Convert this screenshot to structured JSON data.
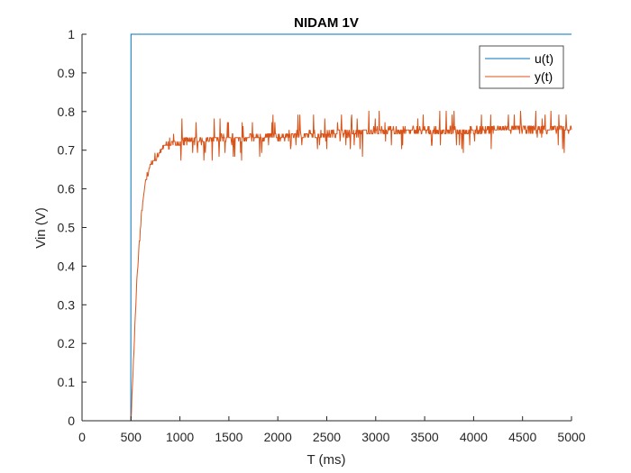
{
  "chart_data": {
    "type": "line",
    "title": "NIDAM 1V",
    "xlabel": "T (ms)",
    "ylabel": "Vin (V)",
    "xlim": [
      0,
      5000
    ],
    "ylim": [
      0,
      1
    ],
    "x_ticks": [
      "0",
      "500",
      "1000",
      "1500",
      "2000",
      "2500",
      "3000",
      "3500",
      "4000",
      "4500",
      "5000"
    ],
    "y_ticks": [
      "0",
      "0.1",
      "0.2",
      "0.3",
      "0.4",
      "0.5",
      "0.6",
      "0.7",
      "0.8",
      "0.9",
      "1"
    ],
    "grid": false,
    "legend_position": "top-right",
    "series": [
      {
        "name": "u(t)",
        "color": "#0072BD",
        "x": [
          0,
          498,
          500,
          5000
        ],
        "y": [
          0,
          0,
          1,
          1
        ]
      },
      {
        "name": "y(t)",
        "color": "#D95319",
        "x": [
          0,
          480,
          500,
          520,
          540,
          560,
          580,
          600,
          620,
          640,
          660,
          680,
          700,
          720,
          740,
          760,
          780,
          800,
          850,
          900,
          950,
          1000,
          1100,
          1200,
          1300,
          1400,
          1500,
          1600,
          1700,
          1800,
          1900,
          2000,
          2200,
          2400,
          2600,
          2800,
          3000,
          3200,
          3400,
          3600,
          3800,
          4000,
          4200,
          4400,
          4600,
          4800,
          5000
        ],
        "y": [
          0,
          0,
          0.0,
          0.12,
          0.24,
          0.36,
          0.44,
          0.51,
          0.56,
          0.6,
          0.63,
          0.65,
          0.66,
          0.67,
          0.68,
          0.68,
          0.69,
          0.7,
          0.71,
          0.715,
          0.72,
          0.72,
          0.725,
          0.725,
          0.725,
          0.73,
          0.73,
          0.73,
          0.73,
          0.735,
          0.735,
          0.735,
          0.74,
          0.74,
          0.745,
          0.745,
          0.75,
          0.75,
          0.75,
          0.75,
          0.75,
          0.75,
          0.755,
          0.755,
          0.755,
          0.755,
          0.755
        ]
      }
    ]
  }
}
